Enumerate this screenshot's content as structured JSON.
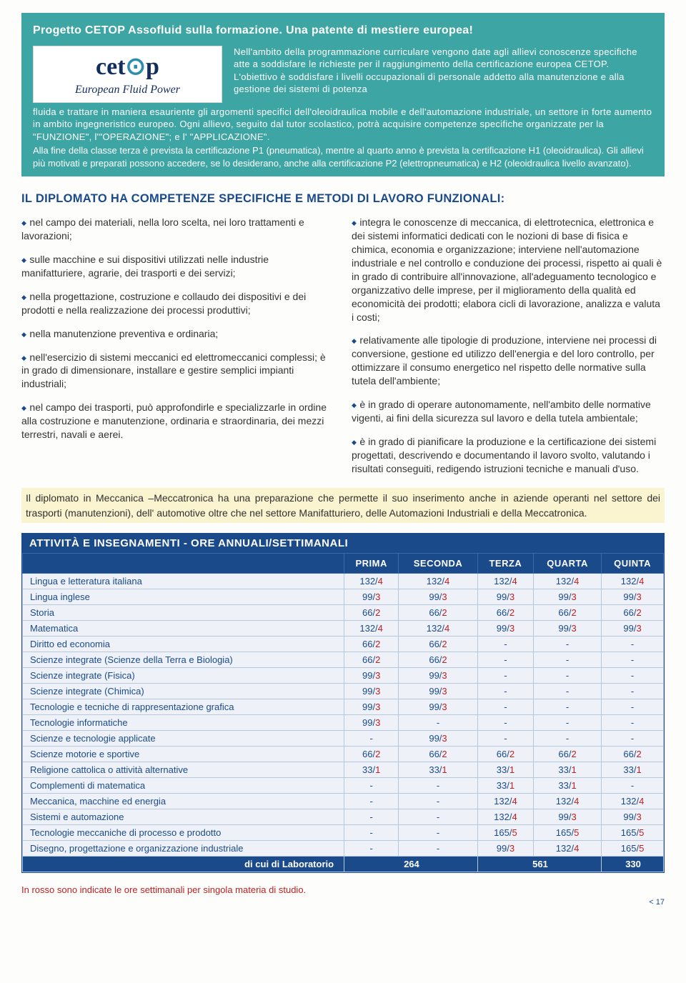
{
  "teal": {
    "title": "Progetto CETOP Assofluid sulla formazione. Una patente di mestiere europea!",
    "logo_main_1": "cet",
    "logo_main_2": "p",
    "logo_sub": "European Fluid Power",
    "p1": "Nell'ambito della programmazione curriculare vengono date agli allievi conoscenze specifiche atte a soddisfare le richieste per il raggiungimento della certificazione europea CETOP. L'obiettivo è soddisfare i livelli occupazionali di personale addetto alla manutenzione e alla gestione dei sistemi di potenza",
    "p2": "fluida e trattare in maniera esauriente gli argomenti specifici dell'oleoidraulica mobile e dell'automazione industriale, un settore in forte aumento in ambito ingegneristico europeo. Ogni allievo, seguito dal tutor scolastico, potrà acquisire competenze specifiche organizzate per la \"FUNZIONE\", l'\"OPERAZIONE\"; e l' \"APPLICAZIONE\".",
    "p3": "Alla fine della classe terza è prevista la certificazione P1 (pneumatica), mentre al quarto anno è prevista la certificazione H1 (oleoidraulica). Gli allievi più motivati e preparati possono accedere, se lo desiderano, anche alla certificazione P2 (elettropneumatica) e H2 (oleoidraulica livello avanzato)."
  },
  "mid_title": "IL DIPLOMATO HA COMPETENZE SPECIFICHE E METODI DI LAVORO FUNZIONALI:",
  "left": [
    "nel campo dei materiali, nella loro scelta, nei loro trattamenti e lavorazioni;",
    "sulle macchine e sui dispositivi utilizzati nelle industrie manifatturiere, agrarie, dei trasporti e dei servizi;",
    "nella progettazione, costruzione e collaudo dei dispositivi e dei prodotti e nella realizzazione dei processi produttivi;",
    "nella manutenzione preventiva e ordinaria;",
    "nell'esercizio di sistemi meccanici ed elettromeccanici complessi; è in grado di dimensionare, installare e gestire semplici impianti industriali;",
    "nel campo dei trasporti, può approfondirle e specializzarle in ordine alla costruzione e manutenzione, ordinaria e straordinaria, dei mezzi terrestri, navali e aerei."
  ],
  "right": [
    "integra le conoscenze di meccanica, di elettrotecnica, elettronica e dei sistemi informatici dedicati con le nozioni di base di fisica e chimica, economia e organizzazione; interviene nell'automazione industriale e nel controllo e conduzione dei processi, rispetto ai quali è in grado di contribuire all'innovazione, all'adeguamento tecnologico e organizzativo delle imprese, per il miglioramento della qualità ed economicità dei prodotti; elabora cicli di lavorazione, analizza e valuta i costi;",
    "relativamente alle tipologie di produzione, interviene nei processi di conversione, gestione ed utilizzo dell'energia e del loro controllo, per ottimizzare il consumo energetico nel rispetto delle normative sulla tutela dell'ambiente;",
    "è in grado di operare autonomamente, nell'ambito delle normative vigenti, ai fini della sicurezza sul lavoro e della tutela ambientale;",
    "è in grado di pianificare la produzione e la certificazione dei sistemi progettati, descrivendo e documentando il lavoro svolto, valutando i risultati conseguiti, redigendo istruzioni tecniche e manuali d'uso."
  ],
  "yellow": "Il diplomato in Meccanica –Meccatronica ha una preparazione che permette il suo inserimento  anche in aziende operanti nel settore dei  trasporti (manutenzioni),  dell' automotive oltre che nel settore Manifatturiero, delle Automazioni Industriali e della Meccatronica.",
  "table": {
    "title": "ATTIVITÀ E INSEGNAMENTI - ORE ANNUALI/SETTIMANALI",
    "headers": [
      "PRIMA",
      "SECONDA",
      "TERZA",
      "QUARTA",
      "QUINTA"
    ],
    "rows": [
      {
        "s": "Lingua e letteratura italiana",
        "v": [
          [
            "132",
            "4"
          ],
          [
            "132",
            "4"
          ],
          [
            "132",
            "4"
          ],
          [
            "132",
            "4"
          ],
          [
            "132",
            "4"
          ]
        ]
      },
      {
        "s": "Lingua inglese",
        "v": [
          [
            "99",
            "3"
          ],
          [
            "99",
            "3"
          ],
          [
            "99",
            "3"
          ],
          [
            "99",
            "3"
          ],
          [
            "99",
            "3"
          ]
        ]
      },
      {
        "s": "Storia",
        "v": [
          [
            "66",
            "2"
          ],
          [
            "66",
            "2"
          ],
          [
            "66",
            "2"
          ],
          [
            "66",
            "2"
          ],
          [
            "66",
            "2"
          ]
        ]
      },
      {
        "s": "Matematica",
        "v": [
          [
            "132",
            "4"
          ],
          [
            "132",
            "4"
          ],
          [
            "99",
            "3"
          ],
          [
            "99",
            "3"
          ],
          [
            "99",
            "3"
          ]
        ]
      },
      {
        "s": "Diritto ed economia",
        "v": [
          [
            "66",
            "2"
          ],
          [
            "66",
            "2"
          ],
          [
            "-",
            ""
          ],
          [
            "-",
            ""
          ],
          [
            "-",
            ""
          ]
        ]
      },
      {
        "s": "Scienze integrate (Scienze della Terra e Biologia)",
        "v": [
          [
            "66",
            "2"
          ],
          [
            "66",
            "2"
          ],
          [
            "-",
            ""
          ],
          [
            "-",
            ""
          ],
          [
            "-",
            ""
          ]
        ]
      },
      {
        "s": "Scienze integrate (Fisica)",
        "v": [
          [
            "99",
            "3"
          ],
          [
            "99",
            "3"
          ],
          [
            "-",
            ""
          ],
          [
            "-",
            ""
          ],
          [
            "-",
            ""
          ]
        ]
      },
      {
        "s": "Scienze integrate (Chimica)",
        "v": [
          [
            "99",
            "3"
          ],
          [
            "99",
            "3"
          ],
          [
            "-",
            ""
          ],
          [
            "-",
            ""
          ],
          [
            "-",
            ""
          ]
        ]
      },
      {
        "s": "Tecnologie e tecniche di rappresentazione grafica",
        "v": [
          [
            "99",
            "3"
          ],
          [
            "99",
            "3"
          ],
          [
            "-",
            ""
          ],
          [
            "-",
            ""
          ],
          [
            "-",
            ""
          ]
        ]
      },
      {
        "s": "Tecnologie informatiche",
        "v": [
          [
            "99",
            "3"
          ],
          [
            "-",
            ""
          ],
          [
            "-",
            ""
          ],
          [
            "-",
            ""
          ],
          [
            "-",
            ""
          ]
        ]
      },
      {
        "s": "Scienze e tecnologie applicate",
        "v": [
          [
            "-",
            ""
          ],
          [
            "99",
            "3"
          ],
          [
            "-",
            ""
          ],
          [
            "-",
            ""
          ],
          [
            "-",
            ""
          ]
        ]
      },
      {
        "s": "Scienze motorie e sportive",
        "v": [
          [
            "66",
            "2"
          ],
          [
            "66",
            "2"
          ],
          [
            "66",
            "2"
          ],
          [
            "66",
            "2"
          ],
          [
            "66",
            "2"
          ]
        ]
      },
      {
        "s": "Religione cattolica o attività alternative",
        "v": [
          [
            "33",
            "1"
          ],
          [
            "33",
            "1"
          ],
          [
            "33",
            "1"
          ],
          [
            "33",
            "1"
          ],
          [
            "33",
            "1"
          ]
        ]
      },
      {
        "s": "Complementi di matematica",
        "v": [
          [
            "-",
            ""
          ],
          [
            "-",
            ""
          ],
          [
            "33",
            "1"
          ],
          [
            "33",
            "1"
          ],
          [
            "-",
            ""
          ]
        ]
      },
      {
        "s": "Meccanica, macchine ed energia",
        "v": [
          [
            "-",
            ""
          ],
          [
            "-",
            ""
          ],
          [
            "132",
            "4"
          ],
          [
            "132",
            "4"
          ],
          [
            "132",
            "4"
          ]
        ]
      },
      {
        "s": "Sistemi e automazione",
        "v": [
          [
            "-",
            ""
          ],
          [
            "-",
            ""
          ],
          [
            "132",
            "4"
          ],
          [
            "99",
            "3"
          ],
          [
            "99",
            "3"
          ]
        ]
      },
      {
        "s": "Tecnologie meccaniche di processo e prodotto",
        "v": [
          [
            "-",
            ""
          ],
          [
            "-",
            ""
          ],
          [
            "165",
            "5"
          ],
          [
            "165",
            "5"
          ],
          [
            "165",
            "5"
          ]
        ]
      },
      {
        "s": "Disegno, progettazione e organizzazione industriale",
        "v": [
          [
            "-",
            ""
          ],
          [
            "-",
            ""
          ],
          [
            "99",
            "3"
          ],
          [
            "132",
            "4"
          ],
          [
            "165",
            "5"
          ]
        ]
      }
    ],
    "footer_label": "di cui di Laboratorio",
    "footer_vals": [
      "264",
      "561",
      "330"
    ]
  },
  "bottom_note": "In rosso sono indicate le ore settimanali per singola materia di studio.",
  "page_num": "< 17"
}
